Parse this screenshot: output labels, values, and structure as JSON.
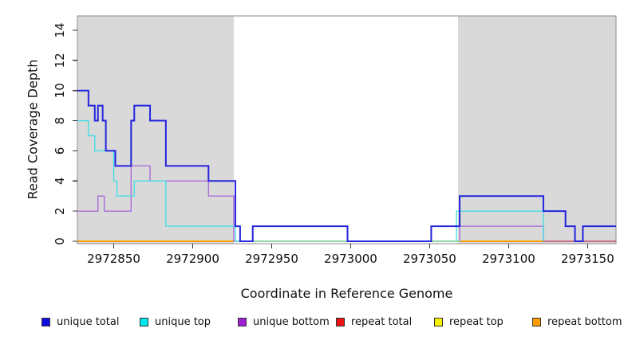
{
  "chart_data": {
    "type": "line",
    "step": true,
    "title": "",
    "xlabel": "Coordinate in Reference Genome",
    "ylabel": "Read Coverage Depth",
    "x_ticks": [
      2972850,
      2972900,
      2972950,
      2973000,
      2973050,
      2973100,
      2973150
    ],
    "y_ticks": [
      0,
      2,
      4,
      6,
      8,
      10,
      12,
      14
    ],
    "xlim": [
      2972827,
      2973168
    ],
    "ylim": [
      0,
      15
    ],
    "grid": false,
    "legend_position": "bottom",
    "box_color": "#8a8a8a",
    "tick_color": "#333333",
    "shaded_regions": [
      {
        "name": "repeat-region-left",
        "from": 2972827,
        "to": 2972926,
        "color": "#d9d9d9"
      },
      {
        "name": "repeat-region-right",
        "from": 2973068,
        "to": 2973168,
        "color": "#d9d9d9"
      }
    ],
    "series": [
      {
        "name": "repeat total",
        "color": "#ee1111",
        "width": 1.4,
        "runs": [
          {
            "from": 2972827,
            "to": 2972926,
            "value": 0
          },
          {
            "from": 2973069,
            "to": 2973168,
            "value": 0
          }
        ]
      },
      {
        "name": "repeat top",
        "color": "#f7ef00",
        "width": 1.4,
        "runs": [
          {
            "from": 2972827,
            "to": 2972926,
            "value": 0
          },
          {
            "from": 2973069,
            "to": 2973168,
            "value": 0
          }
        ]
      },
      {
        "name": "repeat bottom",
        "color": "#ff9d00",
        "width": 2,
        "runs": [
          {
            "from": 2972827,
            "to": 2972926,
            "value": 0
          },
          {
            "from": 2973069,
            "to": 2973168,
            "value": 0
          }
        ]
      },
      {
        "name": "unique bottom",
        "color": "#aa6cd8",
        "width": 1.4,
        "points": [
          [
            2972827,
            2
          ],
          [
            2972840,
            3
          ],
          [
            2972844,
            2
          ],
          [
            2972861,
            5
          ],
          [
            2972873,
            4
          ],
          [
            2972910,
            3
          ],
          [
            2972926,
            0
          ],
          [
            2973069,
            1
          ],
          [
            2973122,
            0
          ]
        ]
      },
      {
        "name": "unique top",
        "color": "#45dfe6",
        "width": 1.4,
        "points": [
          [
            2972827,
            8
          ],
          [
            2972834,
            7
          ],
          [
            2972838,
            6
          ],
          [
            2972850,
            4
          ],
          [
            2972852,
            3
          ],
          [
            2972863,
            4
          ],
          [
            2972883,
            1
          ],
          [
            2972927,
            0
          ],
          [
            2973067,
            2
          ],
          [
            2973122,
            0
          ]
        ]
      },
      {
        "name": "unique total",
        "color": "#2424dd",
        "width": 2,
        "top_layer": true,
        "points": [
          [
            2972827,
            10
          ],
          [
            2972834,
            9
          ],
          [
            2972838,
            8
          ],
          [
            2972840,
            9
          ],
          [
            2972843,
            8
          ],
          [
            2972845,
            6
          ],
          [
            2972851,
            5
          ],
          [
            2972861,
            8
          ],
          [
            2972863,
            9
          ],
          [
            2972873,
            8
          ],
          [
            2972883,
            5
          ],
          [
            2972910,
            4
          ],
          [
            2972927,
            1
          ],
          [
            2972930,
            0
          ],
          [
            2972938,
            1
          ],
          [
            2972998,
            0
          ],
          [
            2973051,
            1
          ],
          [
            2973069,
            3
          ],
          [
            2973122,
            2
          ],
          [
            2973136,
            1
          ],
          [
            2973142,
            0
          ],
          [
            2973147,
            1
          ]
        ]
      }
    ],
    "overlap_segments": [
      {
        "name": "green-overlap-mid",
        "color": "#8ed88e",
        "from": 2972938,
        "to": 2972998,
        "value": 0,
        "width": 1.6
      },
      {
        "name": "green-overlap-mid2",
        "color": "#8ed88e",
        "from": 2973051,
        "to": 2973070,
        "value": 0,
        "width": 1.6
      },
      {
        "name": "crimson-overlap-right",
        "color": "#e05577",
        "from": 2973122,
        "to": 2973168,
        "value": 0,
        "width": 1.6
      }
    ],
    "legend": [
      {
        "label": "unique total",
        "color": "#0d0de0"
      },
      {
        "label": "unique top",
        "color": "#00e8f0"
      },
      {
        "label": "unique bottom",
        "color": "#9d1fd3"
      },
      {
        "label": "repeat total",
        "color": "#ee1111"
      },
      {
        "label": "repeat top",
        "color": "#f7ef00"
      },
      {
        "label": "repeat bottom",
        "color": "#ff9d00"
      }
    ]
  }
}
